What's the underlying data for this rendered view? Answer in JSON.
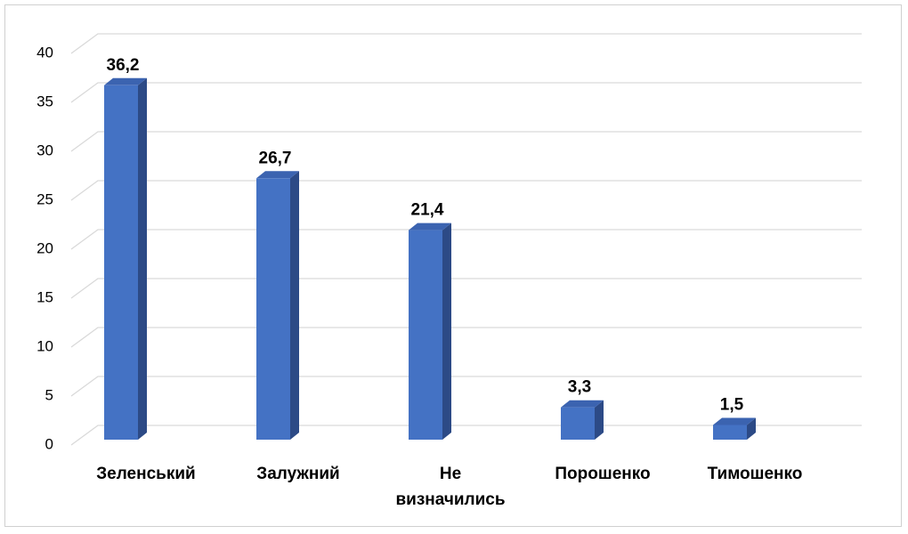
{
  "chart_data": {
    "type": "bar3d",
    "categories": [
      "Зеленський",
      "Залужний",
      "Не визначились",
      "Порошенко",
      "Тимошенко"
    ],
    "values": [
      36.2,
      26.7,
      21.4,
      3.3,
      1.5
    ],
    "value_labels": [
      "36,2",
      "26,7",
      "21,4",
      "3,3",
      "1,5"
    ],
    "color": "#4472c4",
    "ylim": [
      0,
      40
    ],
    "yticks": [
      0,
      5,
      10,
      15,
      20,
      25,
      30,
      35,
      40
    ],
    "grid": true
  }
}
